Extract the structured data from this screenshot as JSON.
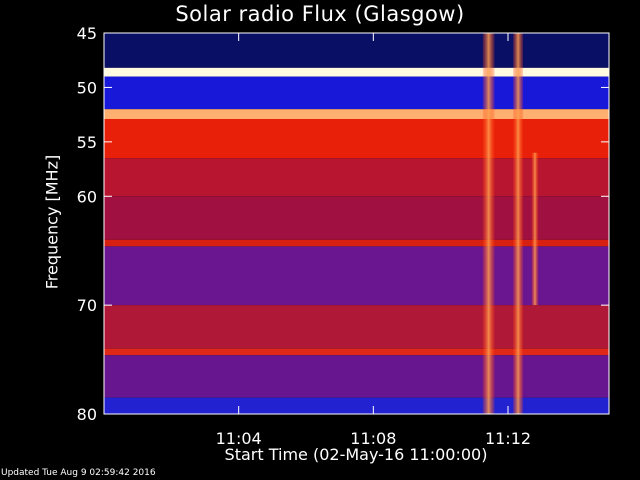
{
  "chart_data": {
    "type": "heatmap",
    "title": "Solar radio Flux (Glasgow)",
    "xlabel": "Start Time (02-May-16 11:00:00)",
    "ylabel": "Frequency [MHz]",
    "x_range_minutes": [
      0,
      15
    ],
    "x_ticks": [
      {
        "minute": 4,
        "label": "11:04"
      },
      {
        "minute": 8,
        "label": "11:08"
      },
      {
        "minute": 12,
        "label": "11:12"
      }
    ],
    "ylim": [
      45,
      80
    ],
    "y_scale": "linear",
    "y_ticks": [
      {
        "mhz": 45,
        "label": "45"
      },
      {
        "mhz": 50,
        "label": "50"
      },
      {
        "mhz": 55,
        "label": "55"
      },
      {
        "mhz": 60,
        "label": "60"
      },
      {
        "mhz": 70,
        "label": "70"
      },
      {
        "mhz": 80,
        "label": "80"
      }
    ],
    "colormap": "blue-red-yellow-white",
    "bands": [
      {
        "mhz": [
          45.0,
          48.2
        ],
        "color": "#0a0f66"
      },
      {
        "mhz": [
          48.2,
          49.0
        ],
        "color": "#fffbe0"
      },
      {
        "mhz": [
          49.0,
          52.0
        ],
        "color": "#1818d8"
      },
      {
        "mhz": [
          52.0,
          52.9
        ],
        "color": "#ffb070"
      },
      {
        "mhz": [
          52.9,
          56.5
        ],
        "color": "#e8200a"
      },
      {
        "mhz": [
          56.5,
          60.0
        ],
        "color": "#b81530"
      },
      {
        "mhz": [
          60.0,
          64.0
        ],
        "color": "#a01040"
      },
      {
        "mhz": [
          64.0,
          64.6
        ],
        "color": "#d82010"
      },
      {
        "mhz": [
          64.6,
          70.0
        ],
        "color": "#6a1690"
      },
      {
        "mhz": [
          70.0,
          74.0
        ],
        "color": "#b01838"
      },
      {
        "mhz": [
          74.0,
          74.6
        ],
        "color": "#e02818"
      },
      {
        "mhz": [
          74.6,
          78.5
        ],
        "color": "#681590"
      },
      {
        "mhz": [
          78.5,
          80.0
        ],
        "color": "#2222d0"
      }
    ],
    "bursts": [
      {
        "minute": [
          11.25,
          11.6
        ],
        "mhz": [
          45,
          80
        ],
        "color": "#ff6a20"
      },
      {
        "minute": [
          12.15,
          12.45
        ],
        "mhz": [
          45,
          80
        ],
        "color": "#ff7a2a"
      },
      {
        "minute": [
          12.7,
          12.9
        ],
        "mhz": [
          56,
          70
        ],
        "color": "#ff9040"
      }
    ],
    "footer": "Updated Tue Aug  9 02:59:42 2016"
  }
}
